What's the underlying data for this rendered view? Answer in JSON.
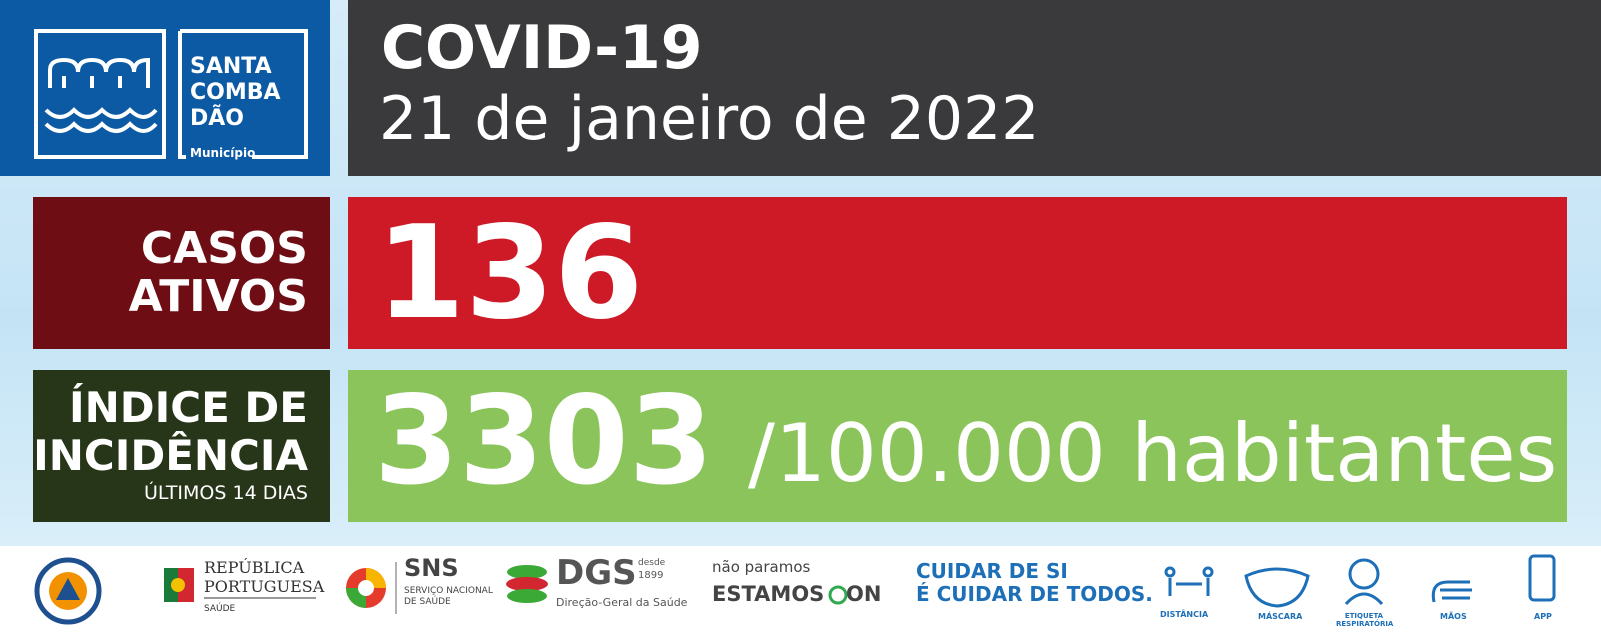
{
  "logo": {
    "name_lines": [
      "SANTA",
      "COMBA",
      "DÃO"
    ],
    "subtitle": "Município"
  },
  "header": {
    "title": "COVID-19",
    "date": "21 de janeiro de 2022"
  },
  "active_cases": {
    "label_lines": [
      "CASOS",
      "ATIVOS"
    ],
    "value": 136
  },
  "incidence": {
    "label_lines": [
      "ÍNDICE DE",
      "INCIDÊNCIA"
    ],
    "period": "ÚLTIMOS 14 DIAS",
    "value": 3303,
    "unit": "/100.000 habitantes"
  },
  "footer": {
    "republica": {
      "lines": [
        "REPÚBLICA",
        "PORTUGUESA"
      ],
      "sector": "SAÚDE"
    },
    "sns": {
      "acronym": "SNS",
      "lines": [
        "SERVIÇO NACIONAL",
        "DE SAÚDE"
      ]
    },
    "dgs": {
      "acronym": "DGS",
      "since": "desde",
      "year": "1899",
      "name": "Direção-Geral da Saúde"
    },
    "campaign": {
      "top": "não paramos",
      "main": "ESTAMOS",
      "on": "ON"
    },
    "slogan": {
      "lines": [
        "CUIDAR DE SI",
        "É CUIDAR DE TODOS."
      ]
    },
    "icons": [
      "DISTÂNCIA",
      "MÁSCARA",
      "ETIQUETA RESPIRATÓRIA",
      "MÃOS",
      "APP"
    ]
  }
}
